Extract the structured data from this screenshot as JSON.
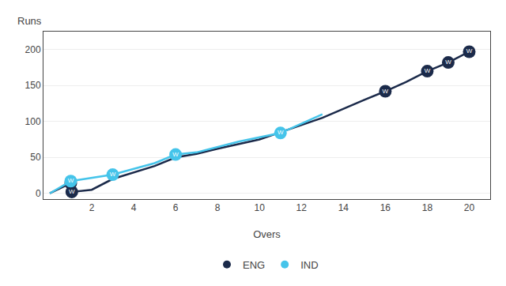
{
  "chart_data": {
    "type": "line",
    "xlabel": "Overs",
    "ylabel": "Runs",
    "xlim": [
      -0.3,
      21
    ],
    "xticks": [
      2,
      4,
      6,
      8,
      10,
      12,
      14,
      16,
      18,
      20
    ],
    "ylim": [
      -8,
      225
    ],
    "yticks": [
      0,
      50,
      100,
      150,
      200
    ],
    "grid": "y",
    "legend": "bottom",
    "series": [
      {
        "name": "ENG",
        "color": "#1b2a4a",
        "x": [
          0,
          1,
          1.05,
          2,
          3,
          5,
          6,
          7,
          8,
          10,
          11,
          13,
          15,
          16,
          17,
          18,
          19,
          20
        ],
        "values": [
          0,
          14,
          2,
          5,
          20,
          38,
          50,
          55,
          62,
          75,
          85,
          105,
          130,
          142,
          155,
          170,
          182,
          197
        ]
      },
      {
        "name": "IND",
        "color": "#45c4ea",
        "x": [
          0,
          1,
          3,
          5,
          6,
          7,
          9,
          11,
          13
        ],
        "values": [
          0,
          17,
          26,
          42,
          54,
          57,
          72,
          84,
          110
        ]
      }
    ],
    "annotations": [
      {
        "series": "ENG",
        "x": 1,
        "y": 14,
        "text": "W"
      },
      {
        "series": "ENG",
        "x": 1.05,
        "y": 2,
        "text": "W"
      },
      {
        "series": "ENG",
        "x": 16,
        "y": 142,
        "text": "W"
      },
      {
        "series": "ENG",
        "x": 18,
        "y": 170,
        "text": "W"
      },
      {
        "series": "ENG",
        "x": 19,
        "y": 182,
        "text": "W"
      },
      {
        "series": "ENG",
        "x": 20,
        "y": 197,
        "text": "W"
      },
      {
        "series": "IND",
        "x": 1,
        "y": 17,
        "text": "W"
      },
      {
        "series": "IND",
        "x": 3,
        "y": 26,
        "text": "W"
      },
      {
        "series": "IND",
        "x": 6,
        "y": 54,
        "text": "W"
      },
      {
        "series": "IND",
        "x": 11,
        "y": 84,
        "text": "W"
      }
    ]
  }
}
